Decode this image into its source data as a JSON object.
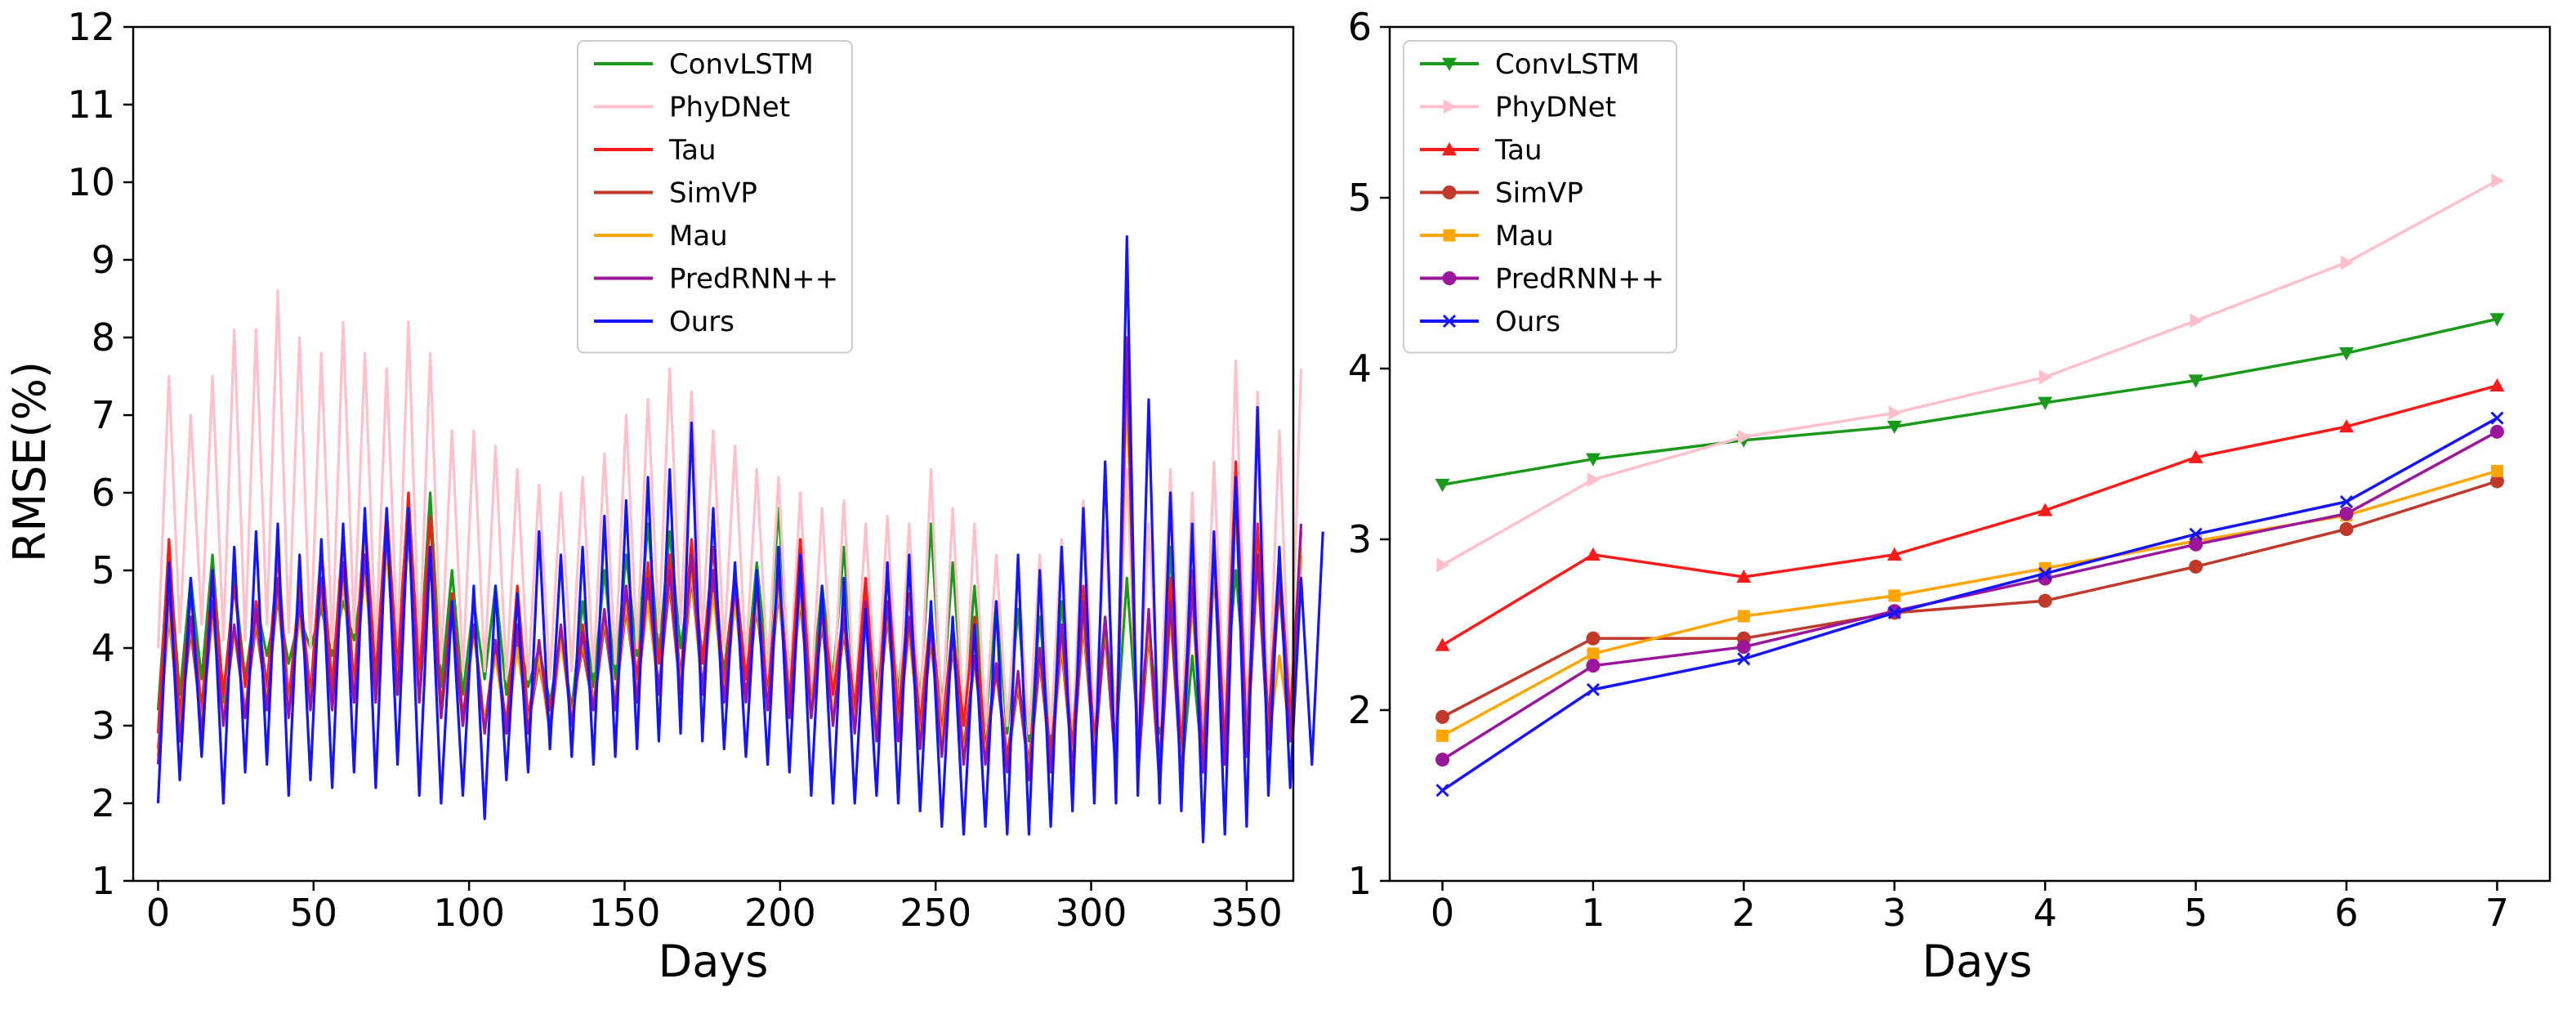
{
  "chart_data": [
    {
      "type": "line",
      "xlabel": "Days",
      "ylabel": "RMSE(%)",
      "xlim": [
        -8,
        365
      ],
      "ylim": [
        1,
        12
      ],
      "xticks": [
        0,
        50,
        100,
        150,
        200,
        250,
        300,
        350
      ],
      "yticks": [
        1,
        2,
        3,
        4,
        5,
        6,
        7,
        8,
        9,
        10,
        11,
        12
      ],
      "legend_position": "top-center",
      "period_days": 7,
      "series": [
        {
          "name": "ConvLSTM",
          "color": "#1a9a1a",
          "values": [
            3.2,
            5.2,
            3.4,
            4.9,
            3.6,
            5.2,
            3.3,
            4.9,
            3.6,
            4.6,
            3.9,
            4.6,
            3.8,
            4.4,
            4.0,
            4.5,
            3.9,
            4.6,
            4.1,
            5.1,
            3.7,
            5.4,
            3.9,
            5.9,
            3.7,
            6.0,
            3.5,
            5.0,
            3.4,
            4.6,
            3.6,
            4.8,
            3.4,
            4.3,
            3.5,
            4.0,
            3.3,
            4.1,
            3.2,
            4.6,
            3.5,
            5.0,
            3.6,
            5.2,
            3.9,
            5.6,
            3.9,
            5.5,
            4.0,
            5.0,
            3.9,
            4.7,
            3.7,
            4.9,
            3.6,
            5.1,
            3.7,
            5.8,
            3.6,
            5.3,
            3.4,
            4.8,
            3.6,
            5.3,
            3.3,
            4.8,
            3.5,
            4.9,
            3.4,
            5.0,
            3.3,
            5.6,
            3.2,
            5.1,
            3.1,
            4.8,
            3.0,
            4.6,
            2.9,
            4.5,
            2.8,
            4.4,
            2.8,
            4.6,
            2.9,
            4.5,
            2.9,
            4.4,
            2.8,
            4.9,
            2.9,
            4.3,
            2.9,
            5.3,
            2.3,
            3.9,
            2.4,
            5.2,
            3.3,
            5.0,
            3.3,
            5.1,
            3.1,
            5.0,
            3.0,
            4.8
          ]
        },
        {
          "name": "PhyDNet",
          "color": "#ffc0cb",
          "values": [
            4.0,
            7.5,
            4.2,
            7.0,
            4.3,
            7.5,
            4.1,
            8.1,
            4.1,
            8.1,
            4.3,
            8.6,
            4.2,
            8.0,
            4.0,
            7.8,
            4.0,
            8.2,
            4.2,
            7.8,
            4.0,
            7.6,
            4.0,
            8.2,
            3.9,
            7.8,
            3.8,
            6.8,
            3.7,
            6.8,
            3.7,
            6.6,
            3.6,
            6.3,
            3.6,
            6.1,
            3.6,
            6.0,
            3.7,
            6.2,
            3.7,
            6.5,
            3.8,
            7.0,
            4.0,
            7.2,
            4.2,
            7.6,
            4.3,
            7.3,
            4.2,
            6.8,
            4.0,
            6.6,
            3.8,
            6.3,
            3.7,
            6.2,
            3.5,
            6.0,
            3.4,
            5.8,
            3.3,
            5.9,
            3.2,
            5.6,
            3.2,
            5.7,
            3.1,
            5.6,
            3.1,
            6.3,
            3.0,
            5.8,
            3.0,
            5.6,
            3.0,
            5.2,
            3.0,
            5.0,
            2.9,
            5.2,
            2.9,
            5.4,
            2.8,
            5.9,
            3.0,
            5.5,
            2.9,
            6.3,
            2.8,
            5.6,
            3.0,
            6.3,
            2.9,
            6.0,
            2.9,
            6.4,
            3.0,
            7.7,
            3.0,
            7.3,
            3.1,
            6.8,
            3.1,
            7.6
          ]
        },
        {
          "name": "Tau",
          "color": "#ff1a1a",
          "values": [
            2.9,
            5.4,
            3.1,
            4.7,
            3.2,
            5.0,
            3.4,
            4.8,
            3.5,
            4.6,
            3.5,
            5.2,
            3.3,
            4.8,
            3.4,
            5.3,
            3.5,
            5.5,
            3.5,
            5.7,
            3.6,
            5.8,
            3.7,
            6.0,
            3.6,
            5.7,
            3.2,
            4.7,
            3.1,
            4.3,
            3.0,
            4.1,
            3.0,
            4.8,
            3.1,
            4.0,
            3.2,
            4.2,
            3.0,
            4.3,
            3.3,
            4.4,
            3.3,
            4.8,
            3.6,
            5.1,
            3.8,
            5.2,
            3.6,
            5.4,
            3.8,
            5.3,
            3.5,
            5.0,
            3.6,
            4.8,
            3.4,
            5.0,
            3.3,
            5.4,
            3.2,
            4.6,
            3.4,
            4.5,
            3.2,
            4.9,
            3.0,
            5.0,
            3.1,
            4.7,
            3.0,
            4.5,
            2.9,
            4.3,
            3.0,
            4.4,
            2.7,
            3.8,
            2.6,
            3.6,
            2.5,
            4.0,
            2.6,
            4.2,
            2.7,
            4.8,
            2.8,
            4.3,
            2.7,
            8.0,
            2.6,
            4.4,
            2.5,
            4.9,
            2.7,
            5.0,
            2.6,
            5.4,
            2.7,
            6.4,
            2.8,
            5.6,
            3.0,
            5.2,
            3.1,
            5.5
          ]
        },
        {
          "name": "SimVP",
          "color": "#c0392b",
          "values": [
            2.7,
            4.4,
            3.0,
            4.2,
            3.1,
            4.5,
            3.1,
            4.2,
            3.2,
            4.3,
            3.3,
            4.7,
            3.2,
            4.5,
            3.3,
            4.7,
            3.3,
            4.9,
            3.3,
            5.1,
            3.5,
            5.3,
            3.4,
            5.5,
            3.3,
            5.2,
            3.2,
            4.5,
            3.0,
            4.3,
            3.0,
            4.0,
            3.0,
            4.1,
            3.0,
            3.8,
            3.0,
            4.2,
            3.2,
            4.0,
            3.2,
            4.3,
            3.3,
            4.5,
            3.4,
            4.7,
            3.5,
            4.8,
            3.4,
            4.9,
            3.5,
            4.8,
            3.3,
            4.6,
            3.4,
            4.5,
            3.3,
            4.7,
            3.3,
            4.6,
            3.1,
            4.3,
            3.1,
            4.2,
            3.0,
            4.4,
            2.9,
            4.4,
            2.9,
            4.3,
            2.8,
            4.1,
            2.7,
            4.0,
            2.7,
            3.9,
            2.6,
            3.7,
            2.5,
            3.5,
            2.4,
            3.8,
            2.5,
            4.0,
            2.5,
            4.3,
            2.6,
            4.2,
            2.4,
            7.6,
            2.4,
            4.2,
            2.3,
            4.5,
            2.4,
            4.7,
            2.5,
            5.0,
            2.6,
            5.9,
            2.6,
            5.1,
            2.8,
            4.8,
            2.9,
            5.2
          ]
        },
        {
          "name": "Mau",
          "color": "#ffa500",
          "values": [
            2.6,
            4.5,
            2.9,
            4.3,
            3.0,
            4.4,
            3.1,
            4.2,
            3.2,
            4.4,
            3.3,
            4.8,
            3.2,
            4.4,
            3.3,
            4.8,
            3.2,
            4.9,
            3.4,
            5.0,
            3.3,
            5.3,
            3.5,
            5.4,
            3.4,
            5.1,
            3.1,
            4.4,
            3.0,
            4.2,
            3.0,
            3.9,
            2.9,
            4.0,
            3.0,
            3.9,
            2.9,
            4.1,
            3.1,
            4.1,
            3.3,
            4.4,
            3.3,
            4.6,
            3.4,
            4.6,
            3.4,
            4.9,
            3.5,
            5.0,
            3.4,
            4.7,
            3.4,
            4.6,
            3.3,
            4.6,
            3.3,
            4.8,
            3.1,
            4.7,
            3.2,
            4.4,
            3.1,
            4.3,
            3.0,
            4.3,
            3.0,
            4.5,
            2.9,
            4.2,
            2.8,
            4.2,
            2.8,
            4.1,
            2.6,
            3.8,
            2.6,
            3.8,
            2.4,
            3.6,
            2.4,
            3.9,
            2.4,
            4.1,
            2.5,
            4.4,
            2.6,
            4.3,
            2.5,
            7.4,
            2.4,
            4.3,
            2.3,
            4.4,
            2.4,
            4.6,
            2.5,
            5.1,
            2.5,
            5.8,
            2.7,
            5.0,
            2.8,
            3.9,
            2.9,
            5.3
          ]
        },
        {
          "name": "PredRNN++",
          "color": "#9b169b",
          "values": [
            2.5,
            4.8,
            2.8,
            4.4,
            2.9,
            4.6,
            3.0,
            4.3,
            3.1,
            4.5,
            3.2,
            4.9,
            3.1,
            4.6,
            3.2,
            4.9,
            3.2,
            5.1,
            3.3,
            5.2,
            3.3,
            5.5,
            3.4,
            5.6,
            3.3,
            5.3,
            3.1,
            4.6,
            3.0,
            4.3,
            2.9,
            4.1,
            2.9,
            4.3,
            2.9,
            4.1,
            2.9,
            4.3,
            3.0,
            4.2,
            3.2,
            4.5,
            3.2,
            4.8,
            3.3,
            4.9,
            3.4,
            5.0,
            3.4,
            5.2,
            3.4,
            5.0,
            3.3,
            4.8,
            3.3,
            4.8,
            3.2,
            5.0,
            3.1,
            4.9,
            3.1,
            4.5,
            3.0,
            4.4,
            2.9,
            4.6,
            2.8,
            4.6,
            2.8,
            4.4,
            2.7,
            4.3,
            2.6,
            4.2,
            2.5,
            3.9,
            2.5,
            3.8,
            2.4,
            3.7,
            2.3,
            4.0,
            2.4,
            4.3,
            2.4,
            4.6,
            2.5,
            4.4,
            2.4,
            7.9,
            2.3,
            4.5,
            2.2,
            4.6,
            2.3,
            4.8,
            2.4,
            5.3,
            2.5,
            6.2,
            2.6,
            5.2,
            2.7,
            5.1,
            2.8,
            5.6
          ]
        },
        {
          "name": "Ours",
          "color": "#1414ff",
          "values": [
            2.0,
            5.1,
            2.3,
            4.9,
            2.6,
            5.0,
            2.0,
            5.3,
            2.4,
            5.5,
            2.5,
            5.6,
            2.1,
            5.2,
            2.3,
            5.4,
            2.2,
            5.6,
            2.4,
            5.8,
            2.2,
            5.8,
            2.5,
            5.8,
            2.1,
            5.3,
            2.0,
            4.6,
            2.1,
            4.8,
            1.8,
            4.8,
            2.3,
            4.7,
            2.4,
            5.5,
            2.7,
            5.2,
            2.6,
            5.3,
            2.5,
            5.7,
            2.6,
            5.9,
            2.7,
            6.2,
            2.8,
            6.3,
            2.9,
            6.9,
            2.8,
            5.8,
            2.7,
            5.1,
            2.6,
            5.0,
            2.5,
            5.3,
            2.4,
            5.2,
            2.1,
            4.8,
            2.0,
            4.9,
            2.0,
            4.5,
            2.1,
            5.1,
            2.0,
            5.2,
            1.9,
            4.6,
            1.7,
            4.4,
            1.6,
            4.3,
            1.7,
            4.6,
            1.6,
            5.2,
            1.6,
            5.0,
            1.7,
            5.3,
            1.9,
            5.8,
            2.0,
            6.4,
            2.0,
            9.3,
            2.1,
            7.2,
            2.0,
            6.0,
            1.9,
            5.6,
            1.5,
            5.5,
            1.6,
            6.2,
            1.7,
            7.1,
            2.1,
            5.3,
            2.2,
            4.9,
            2.5,
            5.5
          ]
        }
      ]
    },
    {
      "type": "line",
      "xlabel": "Days",
      "ylabel": "",
      "xlim": [
        -0.35,
        7.35
      ],
      "ylim": [
        1,
        6
      ],
      "xticks": [
        0,
        1,
        2,
        3,
        4,
        5,
        6,
        7
      ],
      "yticks": [
        1,
        2,
        3,
        4,
        5,
        6
      ],
      "legend_position": "top-left",
      "x": [
        0,
        1,
        2,
        3,
        4,
        5,
        6,
        7
      ],
      "series": [
        {
          "name": "ConvLSTM",
          "color": "#1a9a1a",
          "marker": "triangle-down",
          "values": [
            3.32,
            3.47,
            3.58,
            3.66,
            3.8,
            3.93,
            4.09,
            4.29
          ]
        },
        {
          "name": "PhyDNet",
          "color": "#ffc0cb",
          "marker": "triangle-right",
          "values": [
            2.85,
            3.35,
            3.6,
            3.74,
            3.95,
            4.28,
            4.62,
            5.1
          ]
        },
        {
          "name": "Tau",
          "color": "#ff1a1a",
          "marker": "triangle-up",
          "values": [
            2.38,
            2.91,
            2.78,
            2.91,
            3.17,
            3.48,
            3.66,
            3.9
          ]
        },
        {
          "name": "SimVP",
          "color": "#c0392b",
          "marker": "circle",
          "values": [
            1.96,
            2.42,
            2.42,
            2.57,
            2.64,
            2.84,
            3.06,
            3.34
          ]
        },
        {
          "name": "Mau",
          "color": "#ffa500",
          "marker": "square",
          "values": [
            1.85,
            2.33,
            2.55,
            2.67,
            2.83,
            2.99,
            3.14,
            3.4
          ]
        },
        {
          "name": "PredRNN++",
          "color": "#9b169b",
          "marker": "circle",
          "values": [
            1.71,
            2.26,
            2.37,
            2.58,
            2.77,
            2.97,
            3.15,
            3.63
          ]
        },
        {
          "name": "Ours",
          "color": "#1414ff",
          "marker": "x",
          "values": [
            1.53,
            2.12,
            2.3,
            2.57,
            2.8,
            3.03,
            3.22,
            3.71
          ]
        }
      ]
    }
  ]
}
